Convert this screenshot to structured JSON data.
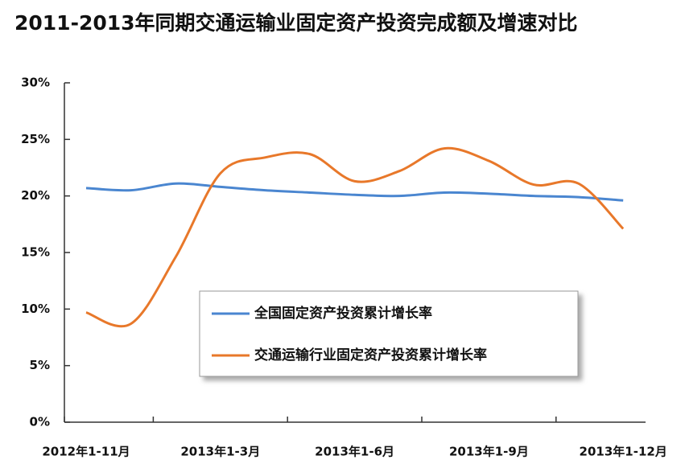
{
  "chart_data": {
    "type": "line",
    "title": "2011-2013年同期交通运输业固定资产投资完成额及增速对比",
    "categories": [
      "2012年1-11月",
      null,
      null,
      "2013年1-3月",
      null,
      null,
      "2013年1-6月",
      null,
      null,
      "2013年1-9月",
      null,
      null,
      "2013年1-12月"
    ],
    "series": [
      {
        "name": "全国固定资产投资累计增长率",
        "color": "#4a86d0",
        "values": [
          20.7,
          20.5,
          21.1,
          20.8,
          20.5,
          20.3,
          20.1,
          20.0,
          20.3,
          20.2,
          20.0,
          19.9,
          19.6
        ]
      },
      {
        "name": "交通运输行业固定资产投资累计增长率",
        "color": "#e8782a",
        "values": [
          9.7,
          8.7,
          14.6,
          22.0,
          23.4,
          23.7,
          21.3,
          22.2,
          24.2,
          23.1,
          21.0,
          21.1,
          17.1
        ]
      }
    ],
    "ylim": [
      0,
      30
    ],
    "yticks": [
      {
        "value": 0,
        "label": "0%"
      },
      {
        "value": 5,
        "label": "5%"
      },
      {
        "value": 10,
        "label": "10%"
      },
      {
        "value": 15,
        "label": "15%"
      },
      {
        "value": 20,
        "label": "20%"
      },
      {
        "value": 25,
        "label": "25%"
      },
      {
        "value": 30,
        "label": "30%"
      }
    ],
    "grid": false,
    "legend_position": "bottom"
  }
}
